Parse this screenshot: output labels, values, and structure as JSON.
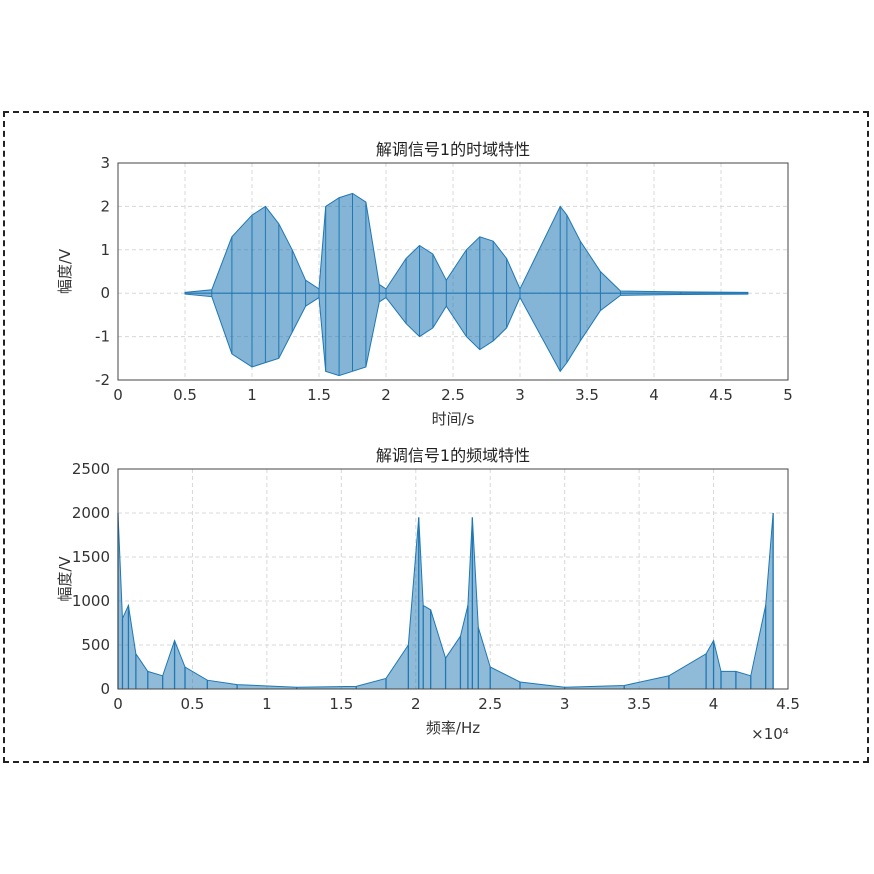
{
  "chart_data": [
    {
      "type": "line",
      "title": "解调信号1的时域特性",
      "xlabel": "时间/s",
      "ylabel": "幅度/V",
      "xlim": [
        0,
        5
      ],
      "ylim": [
        -2,
        3
      ],
      "xticks": [
        "0",
        "0.5",
        "1",
        "1.5",
        "2",
        "2.5",
        "3",
        "3.5",
        "4",
        "4.5",
        "5"
      ],
      "yticks": [
        "-2",
        "-1",
        "0",
        "1",
        "2",
        "3"
      ],
      "grid": true,
      "color": "#1f77b4",
      "series": [
        {
          "x": [
            0.5,
            0.7,
            0.85,
            1.0,
            1.1,
            1.2,
            1.3,
            1.4,
            1.5,
            1.55,
            1.65,
            1.75,
            1.85,
            1.95,
            2.0,
            2.15,
            2.25,
            2.35,
            2.45,
            2.6,
            2.7,
            2.8,
            2.9,
            3.0,
            3.3,
            3.35,
            3.45,
            3.6,
            3.75,
            4.2,
            4.7
          ],
          "y_max": [
            0.02,
            0.08,
            1.3,
            1.8,
            2.0,
            1.6,
            1.0,
            0.3,
            0.1,
            2.0,
            2.2,
            2.3,
            2.1,
            0.2,
            0.1,
            0.8,
            1.1,
            0.9,
            0.3,
            1.0,
            1.3,
            1.2,
            0.8,
            0.1,
            2.0,
            1.8,
            1.2,
            0.5,
            0.05,
            0.03,
            0.02
          ],
          "y_min": [
            -0.02,
            -0.08,
            -1.4,
            -1.7,
            -1.6,
            -1.5,
            -0.9,
            -0.3,
            -0.1,
            -1.8,
            -1.9,
            -1.8,
            -1.7,
            -0.2,
            -0.1,
            -0.7,
            -1.0,
            -0.8,
            -0.3,
            -1.0,
            -1.3,
            -1.1,
            -0.8,
            -0.1,
            -1.8,
            -1.6,
            -1.1,
            -0.4,
            -0.05,
            -0.03,
            -0.02
          ]
        }
      ]
    },
    {
      "type": "line",
      "title": "解调信号1的频域特性",
      "xlabel": "频率/Hz",
      "ylabel": "幅度/V",
      "xlim": [
        0,
        4.5
      ],
      "ylim": [
        0,
        2500
      ],
      "x_multiplier": "×10⁴",
      "xticks": [
        "0",
        "0.5",
        "1",
        "1.5",
        "2",
        "2.5",
        "3",
        "3.5",
        "4",
        "4.5"
      ],
      "yticks": [
        "0",
        "500",
        "1000",
        "1500",
        "2000",
        "2500"
      ],
      "grid": true,
      "color": "#1f77b4",
      "series": [
        {
          "x": [
            0,
            0.03,
            0.07,
            0.12,
            0.2,
            0.3,
            0.38,
            0.45,
            0.6,
            0.8,
            1.2,
            1.6,
            1.8,
            1.95,
            2.02,
            2.05,
            2.1,
            2.2,
            2.3,
            2.35,
            2.38,
            2.42,
            2.5,
            2.7,
            3.0,
            3.4,
            3.7,
            3.95,
            4.0,
            4.05,
            4.15,
            4.25,
            4.35,
            4.4
          ],
          "y": [
            2000,
            800,
            950,
            400,
            200,
            150,
            550,
            250,
            100,
            50,
            20,
            30,
            120,
            500,
            1950,
            950,
            900,
            350,
            600,
            950,
            1950,
            700,
            250,
            80,
            20,
            40,
            150,
            400,
            550,
            200,
            200,
            150,
            950,
            2000
          ]
        }
      ]
    }
  ]
}
